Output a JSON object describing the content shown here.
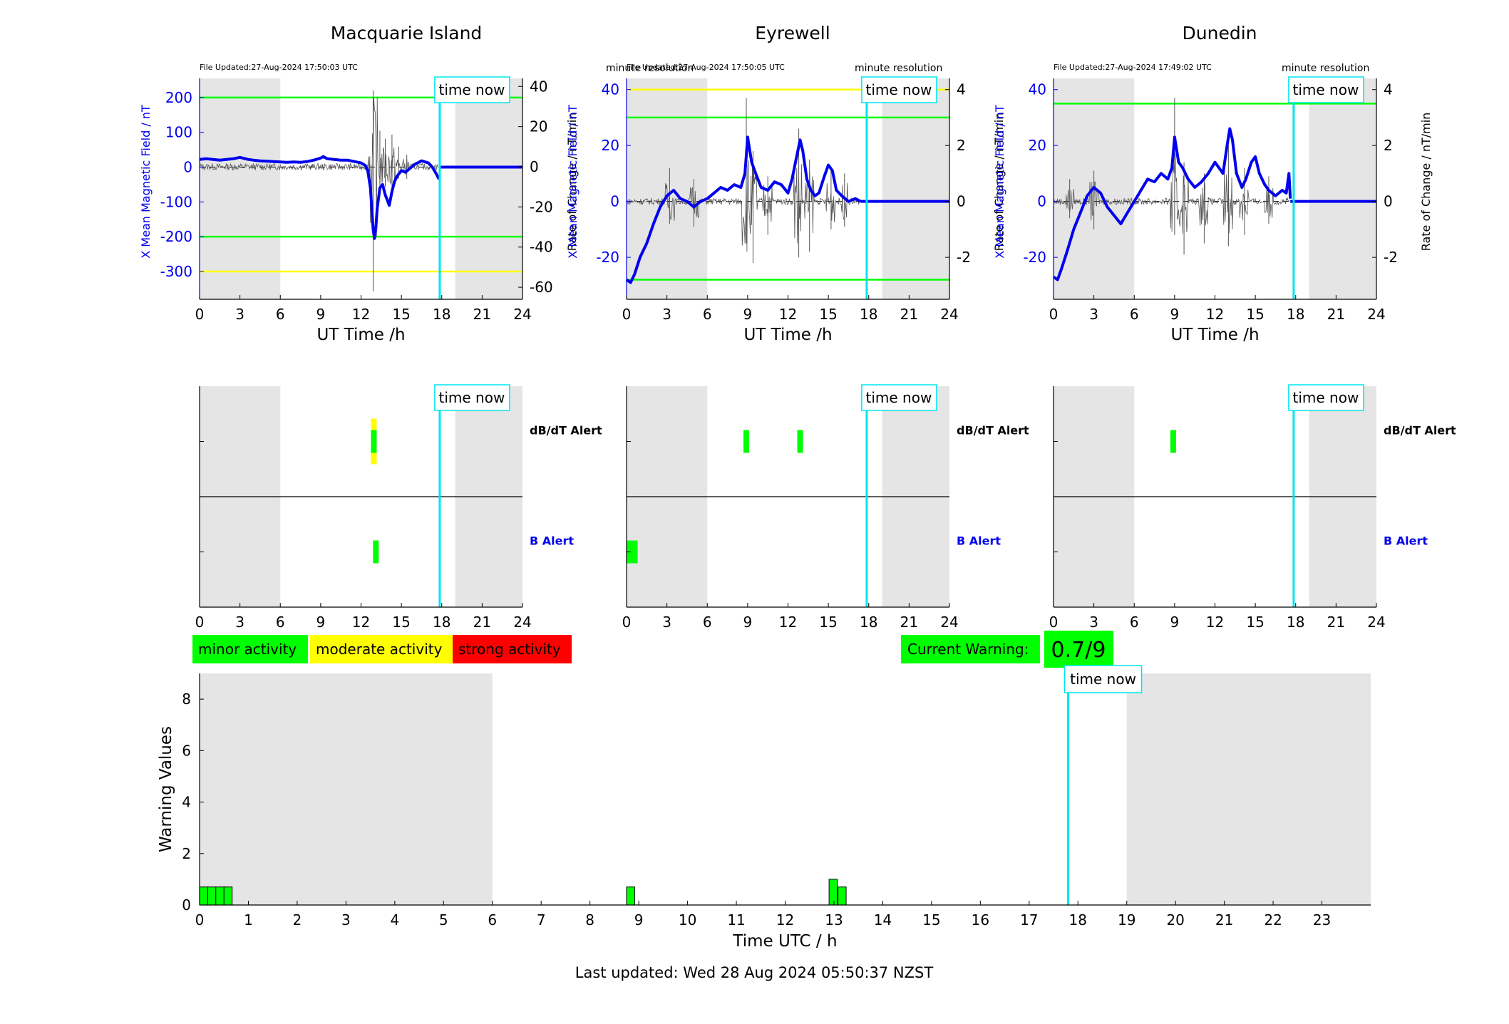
{
  "colors": {
    "blue": "#0000ee",
    "green": "#00ff00",
    "yellow": "#ffff00",
    "red": "#ff0000",
    "cyan": "#00e5ee",
    "night": "#e5e5e5",
    "trace": "#555555"
  },
  "top_panel": {
    "x_ticks": [
      "0",
      "3",
      "6",
      "9",
      "12",
      "15",
      "18",
      "21",
      "24"
    ],
    "x_label": "UT Time /h",
    "left_axis_label": "X Mean Magnetic Field / nT",
    "right_axis_label": "Rate of Change / nT/min",
    "resolution_label": "minute resolution",
    "time_now_label": "time now"
  },
  "alert_panel": {
    "x_ticks": [
      "0",
      "3",
      "6",
      "9",
      "12",
      "15",
      "18",
      "21",
      "24"
    ],
    "dbdt_label": "dB/dT Alert",
    "b_label": "B Alert",
    "time_now_label": "time now"
  },
  "legend": {
    "minor": "minor activity",
    "moderate": "moderate activity",
    "strong": "strong activity"
  },
  "current_warning": {
    "label": "Current Warning:",
    "value": "0.7/9"
  },
  "warning_panel": {
    "x_label": "Time UTC / h",
    "y_label": "Warning Values",
    "time_now_label": "time now",
    "footer": "Last updated: Wed 28 Aug 2024 05:50:37 NZST"
  },
  "chart_data": [
    {
      "type": "line",
      "station": "Macquarie Island",
      "file_updated": "File Updated:27-Aug-2024 17:50:03 UTC",
      "xlabel": "UT Time /h",
      "ylabel": "X Mean Magnetic Field / nT",
      "y2label": "Rate of Change / nT/min",
      "xlim": [
        0,
        24
      ],
      "ylim": [
        -380,
        255
      ],
      "y_ticks": [
        -300,
        -200,
        -100,
        0,
        100,
        200
      ],
      "y2lim": [
        -66,
        44
      ],
      "y2_ticks": [
        -60,
        -40,
        -20,
        0,
        20,
        40
      ],
      "time_now": 17.85,
      "night_bands": [
        [
          0,
          6
        ],
        [
          19,
          24
        ]
      ],
      "thresholds": [
        {
          "value": 200,
          "color": "green"
        },
        {
          "value": -200,
          "color": "green"
        },
        {
          "value": -300,
          "color": "yellow"
        }
      ],
      "field_series": {
        "x": [
          0,
          0.5,
          1,
          1.5,
          2,
          2.5,
          3,
          3.3,
          3.6,
          4,
          4.5,
          5,
          5.5,
          6,
          6.5,
          7,
          7.5,
          8,
          8.5,
          9,
          9.2,
          9.5,
          10,
          10.5,
          11,
          11.5,
          12,
          12.3,
          12.5,
          12.7,
          12.8,
          12.9,
          13.0,
          13.1,
          13.2,
          13.4,
          13.6,
          13.8,
          14.0,
          14.1,
          14.3,
          14.5,
          14.7,
          15.0,
          15.3,
          15.6,
          16.0,
          16.5,
          17.0,
          17.3,
          17.6,
          17.8
        ],
        "y": [
          22,
          24,
          22,
          20,
          22,
          24,
          28,
          25,
          22,
          20,
          18,
          17,
          16,
          15,
          14,
          15,
          14,
          16,
          20,
          26,
          30,
          24,
          22,
          20,
          20,
          16,
          12,
          5,
          -10,
          -60,
          -120,
          -180,
          -205,
          -175,
          -120,
          -60,
          -50,
          -80,
          -100,
          -110,
          -70,
          -40,
          -25,
          -10,
          -15,
          -5,
          8,
          18,
          12,
          0,
          -20,
          -35
        ]
      },
      "field_zero_after": [
        17.8,
        24
      ],
      "rate_spikes": [
        {
          "x": 12.9,
          "hi": 38,
          "lo": -62
        },
        {
          "x": 13.4,
          "hi": 18,
          "lo": -12
        },
        {
          "x": 13.8,
          "hi": 14,
          "lo": -10
        },
        {
          "x": 14.3,
          "hi": 16,
          "lo": -14
        },
        {
          "x": 14.8,
          "hi": 10,
          "lo": -6
        },
        {
          "x": 15.4,
          "hi": 6,
          "lo": -6
        }
      ]
    },
    {
      "type": "line",
      "station": "Eyrewell",
      "file_updated": "File Updated:27-Aug-2024 17:50:05 UTC",
      "xlabel": "UT Time /h",
      "ylabel": "X Mean Magnetic Field / nT",
      "y2label": "Rate of Change / nT/min",
      "xlim": [
        0,
        24
      ],
      "ylim": [
        -35,
        44
      ],
      "y_ticks": [
        -20,
        0,
        20,
        40
      ],
      "y2lim": [
        -3.5,
        4.4
      ],
      "y2_ticks": [
        -2,
        0,
        2,
        4
      ],
      "time_now": 17.85,
      "night_bands": [
        [
          0,
          6
        ],
        [
          19,
          24
        ]
      ],
      "thresholds": [
        {
          "value": 40,
          "color": "yellow"
        },
        {
          "value": 30,
          "color": "green"
        },
        {
          "value": -28,
          "color": "green"
        }
      ],
      "field_series": {
        "x": [
          0,
          0.3,
          0.6,
          1.0,
          1.5,
          2.0,
          2.5,
          3.0,
          3.5,
          4.0,
          4.5,
          5.0,
          5.5,
          6.0,
          6.5,
          7.0,
          7.5,
          8.0,
          8.5,
          8.8,
          9.0,
          9.3,
          9.6,
          10.0,
          10.5,
          11.0,
          11.5,
          12.0,
          12.3,
          12.6,
          12.9,
          13.1,
          13.4,
          13.7,
          14.0,
          14.3,
          14.7,
          15.0,
          15.3,
          15.6,
          16.0,
          16.5,
          17.0,
          17.4
        ],
        "y": [
          -28,
          -29,
          -26,
          -20,
          -15,
          -8,
          -2,
          2,
          4,
          1,
          0,
          -2,
          0,
          1,
          3,
          5,
          4,
          6,
          5,
          10,
          23,
          14,
          10,
          5,
          4,
          7,
          6,
          3,
          8,
          15,
          22,
          18,
          8,
          4,
          2,
          3,
          9,
          13,
          11,
          4,
          2,
          0,
          1,
          0
        ]
      },
      "field_zero_after": [
        17.4,
        24
      ],
      "rate_spikes": [
        {
          "x": 3.2,
          "hi": 1.2,
          "lo": -0.8
        },
        {
          "x": 5.0,
          "hi": 0.8,
          "lo": -0.9
        },
        {
          "x": 8.9,
          "hi": 3.7,
          "lo": -1.5
        },
        {
          "x": 9.4,
          "hi": 1.8,
          "lo": -2.2
        },
        {
          "x": 10.5,
          "hi": 0.9,
          "lo": -1.2
        },
        {
          "x": 12.8,
          "hi": 2.6,
          "lo": -2.0
        },
        {
          "x": 13.6,
          "hi": 1.5,
          "lo": -1.8
        },
        {
          "x": 15.2,
          "hi": 1.2,
          "lo": -1.0
        },
        {
          "x": 16.2,
          "hi": 1.0,
          "lo": -0.9
        }
      ]
    },
    {
      "type": "line",
      "station": "Dunedin",
      "file_updated": "File Updated:27-Aug-2024 17:49:02 UTC",
      "xlabel": "UT Time /h",
      "ylabel": "X Mean Magnetic Field / nT",
      "y2label": "Rate of Change / nT/min",
      "xlim": [
        0,
        24
      ],
      "ylim": [
        -35,
        44
      ],
      "y_ticks": [
        -20,
        0,
        20,
        40
      ],
      "y2lim": [
        -3.5,
        4.4
      ],
      "y2_ticks": [
        -2,
        0,
        2,
        4
      ],
      "time_now": 17.85,
      "night_bands": [
        [
          0,
          6
        ],
        [
          19,
          24
        ]
      ],
      "thresholds": [
        {
          "value": 35,
          "color": "green"
        }
      ],
      "field_series": {
        "x": [
          0,
          0.3,
          0.6,
          1.0,
          1.5,
          2.0,
          2.5,
          3.0,
          3.5,
          4.0,
          4.5,
          5.0,
          5.5,
          6.0,
          6.5,
          7.0,
          7.5,
          8.0,
          8.5,
          8.8,
          9.0,
          9.3,
          9.6,
          10.0,
          10.5,
          11.0,
          11.5,
          12.0,
          12.3,
          12.6,
          12.9,
          13.1,
          13.3,
          13.6,
          14.0,
          14.3,
          14.7,
          15.0,
          15.3,
          15.7,
          16.0,
          16.5,
          17.0,
          17.3,
          17.5,
          17.6
        ],
        "y": [
          -27,
          -28,
          -24,
          -18,
          -10,
          -4,
          2,
          5,
          3,
          -2,
          -5,
          -8,
          -4,
          0,
          4,
          8,
          7,
          10,
          8,
          12,
          23,
          14,
          12,
          8,
          5,
          7,
          10,
          14,
          12,
          10,
          20,
          26,
          22,
          10,
          5,
          8,
          14,
          16,
          10,
          6,
          4,
          2,
          4,
          3,
          10,
          1
        ]
      },
      "field_zero_after": [
        17.6,
        24
      ],
      "rate_spikes": [
        {
          "x": 1.2,
          "hi": 0.8,
          "lo": -0.6
        },
        {
          "x": 3.0,
          "hi": 1.1,
          "lo": -1.0
        },
        {
          "x": 9.0,
          "hi": 3.7,
          "lo": -1.2
        },
        {
          "x": 9.7,
          "hi": 1.4,
          "lo": -1.9
        },
        {
          "x": 11.2,
          "hi": 1.0,
          "lo": -1.5
        },
        {
          "x": 13.0,
          "hi": 2.0,
          "lo": -1.6
        },
        {
          "x": 14.2,
          "hi": 1.2,
          "lo": -1.2
        },
        {
          "x": 16.0,
          "hi": 0.9,
          "lo": -0.8
        }
      ]
    },
    {
      "type": "bar",
      "station": "Macquarie Island",
      "series_name": "alerts",
      "xlim": [
        0,
        24
      ],
      "time_now": 17.85,
      "night_bands": [
        [
          0,
          6
        ],
        [
          19,
          24
        ]
      ],
      "dbdt_alerts": [
        {
          "x": 12.95,
          "color": "yellow"
        },
        {
          "x": 12.95,
          "color": "green"
        }
      ],
      "b_alerts": [
        {
          "x": 13.1,
          "color": "green"
        }
      ]
    },
    {
      "type": "bar",
      "station": "Eyrewell",
      "xlim": [
        0,
        24
      ],
      "time_now": 17.85,
      "night_bands": [
        [
          0,
          6
        ],
        [
          19,
          24
        ]
      ],
      "dbdt_alerts": [
        {
          "x": 8.9,
          "color": "green"
        },
        {
          "x": 12.9,
          "color": "green"
        }
      ],
      "b_alerts": [
        {
          "x": 0.4,
          "color": "green",
          "wide": true
        }
      ]
    },
    {
      "type": "bar",
      "station": "Dunedin",
      "xlim": [
        0,
        24
      ],
      "time_now": 17.85,
      "night_bands": [
        [
          0,
          6
        ],
        [
          19,
          24
        ]
      ],
      "dbdt_alerts": [
        {
          "x": 8.9,
          "color": "green"
        }
      ],
      "b_alerts": []
    },
    {
      "type": "bar",
      "xlabel": "Time UTC / h",
      "ylabel": "Warning Values",
      "xlim": [
        0,
        24
      ],
      "ylim": [
        0,
        9
      ],
      "x_ticks": [
        "0",
        "1",
        "2",
        "3",
        "4",
        "5",
        "6",
        "7",
        "8",
        "9",
        "10",
        "11",
        "12",
        "13",
        "14",
        "15",
        "16",
        "17",
        "18",
        "19",
        "20",
        "21",
        "22",
        "23"
      ],
      "y_ticks": [
        0,
        2,
        4,
        6,
        8
      ],
      "time_now": 17.8,
      "night_bands": [
        [
          0,
          6
        ],
        [
          19,
          24
        ]
      ],
      "bars": [
        {
          "x": 0.0,
          "value": 0.7
        },
        {
          "x": 0.167,
          "value": 0.7
        },
        {
          "x": 0.333,
          "value": 0.7
        },
        {
          "x": 0.5,
          "value": 0.7
        },
        {
          "x": 8.75,
          "value": 0.7
        },
        {
          "x": 12.9,
          "value": 1.0
        },
        {
          "x": 13.083,
          "value": 0.7
        }
      ],
      "bar_width": 0.167
    }
  ]
}
